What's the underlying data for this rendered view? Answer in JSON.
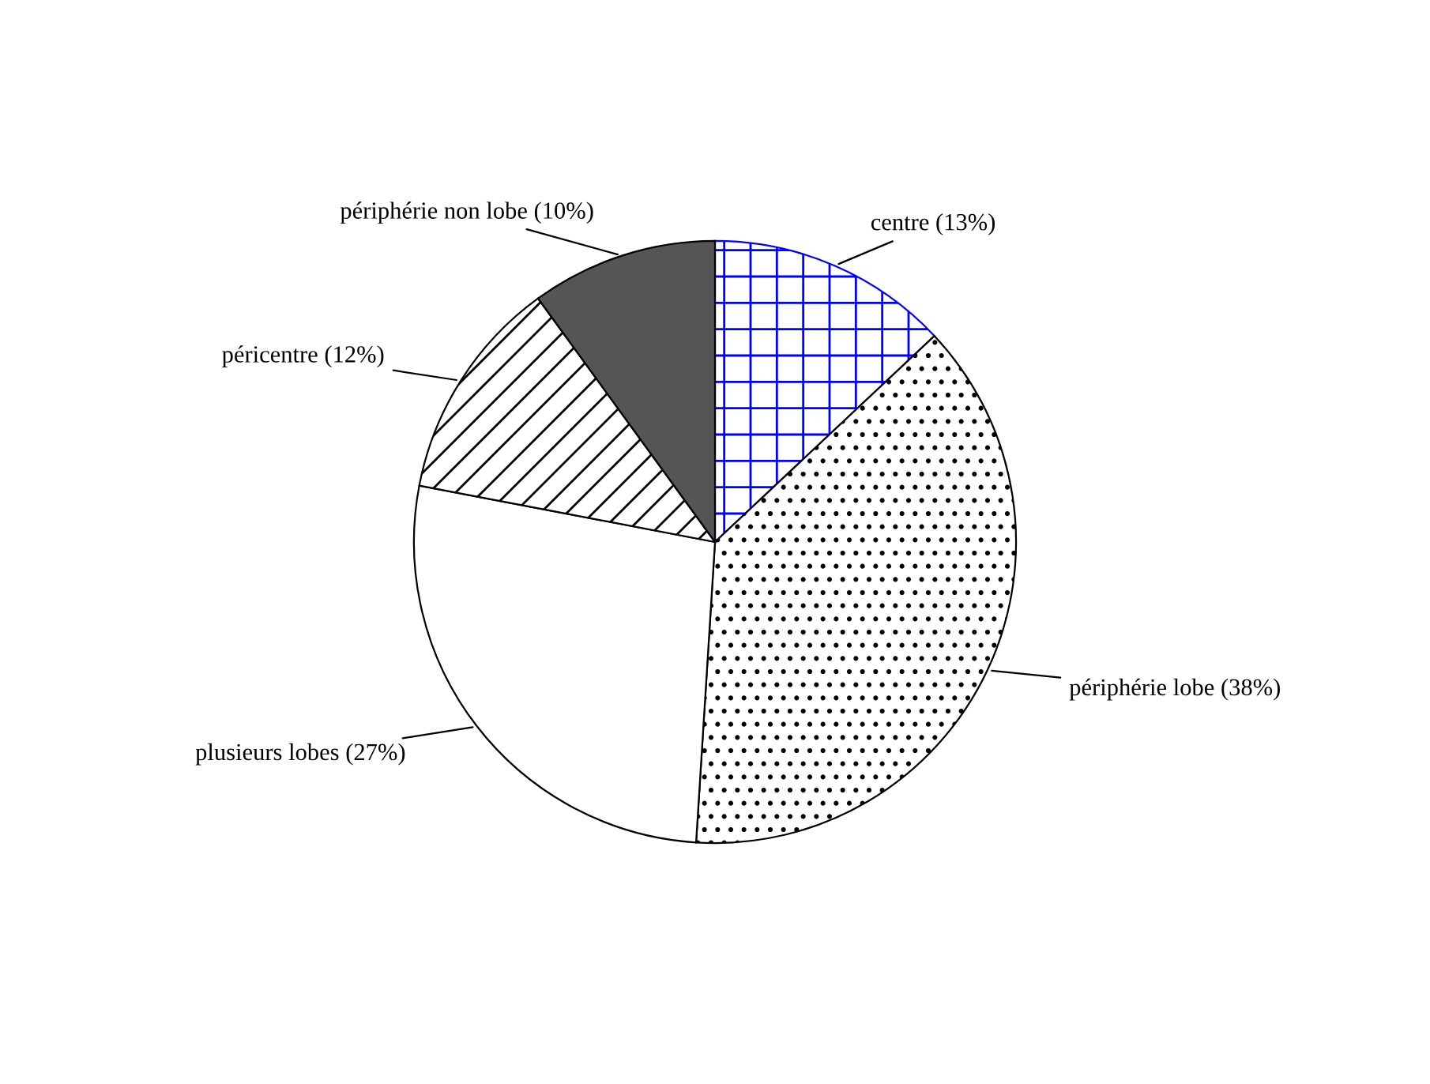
{
  "chart_data": {
    "type": "pie",
    "categories": [
      "centre (13%)",
      "périphérie lobe (38%)",
      "plusieurs lobes (27%)",
      "péricentre (12%)",
      "périphérie non lobe (10%)"
    ],
    "values": [
      13,
      38,
      27,
      12,
      10
    ],
    "colors": [
      "#0000ff",
      "#000000",
      "#ffffff",
      "#000000",
      "#555555"
    ]
  }
}
